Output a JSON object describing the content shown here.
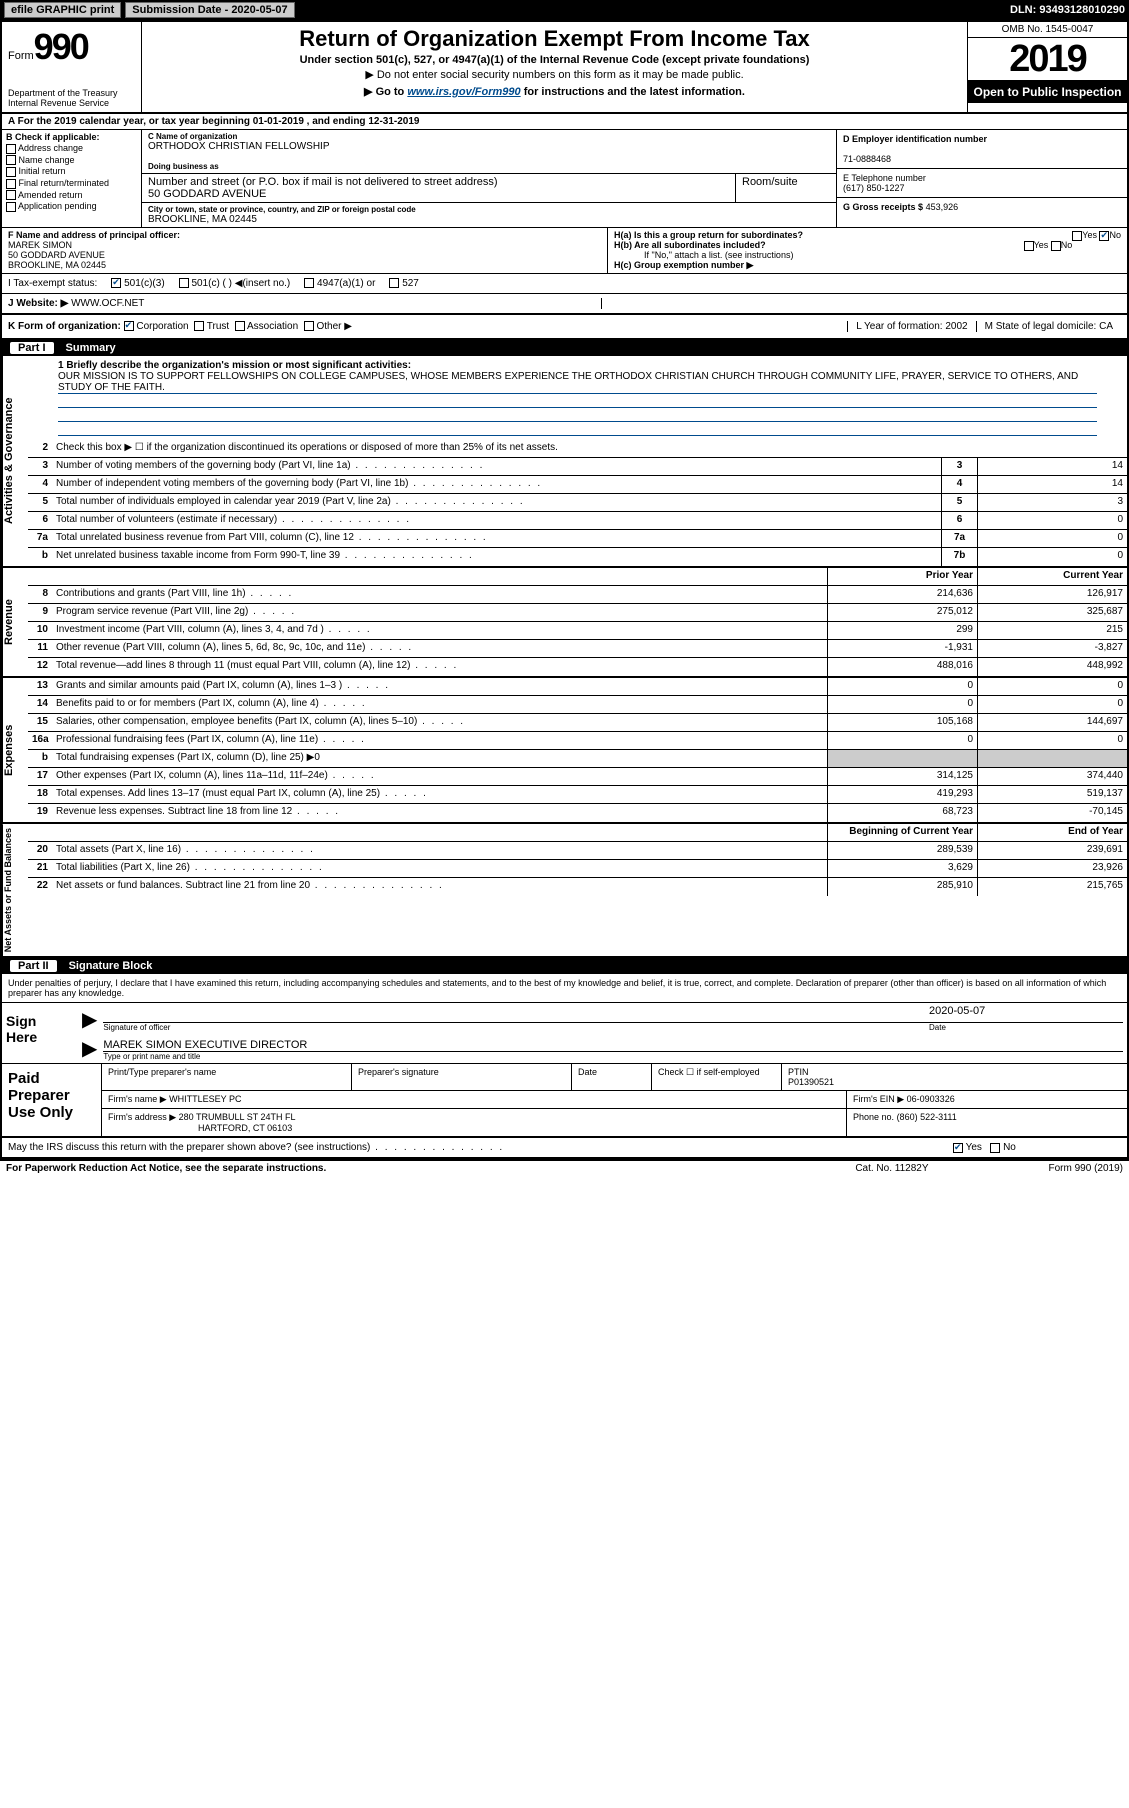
{
  "topbar": {
    "efile": "efile GRAPHIC print",
    "subdate_label": "Submission Date - 2020-05-07",
    "dln": "DLN: 93493128010290"
  },
  "header": {
    "form_prefix": "Form",
    "form_num": "990",
    "dept": "Department of the Treasury\nInternal Revenue Service",
    "title": "Return of Organization Exempt From Income Tax",
    "sub1": "Under section 501(c), 527, or 4947(a)(1) of the Internal Revenue Code (except private foundations)",
    "sub2": "▶ Do not enter social security numbers on this form as it may be made public.",
    "sub3_pre": "▶ Go to ",
    "sub3_link": "www.irs.gov/Form990",
    "sub3_post": " for instructions and the latest information.",
    "omb": "OMB No. 1545-0047",
    "year": "2019",
    "inspect": "Open to Public Inspection"
  },
  "period": "A For the 2019 calendar year, or tax year beginning 01-01-2019   , and ending 12-31-2019",
  "boxB": {
    "label": "B Check if applicable:",
    "opts": [
      "Address change",
      "Name change",
      "Initial return",
      "Final return/terminated",
      "Amended return",
      "Application pending"
    ]
  },
  "boxC": {
    "name_label": "C Name of organization",
    "name": "ORTHODOX CHRISTIAN FELLOWSHIP",
    "dba_label": "Doing business as",
    "addr_label": "Number and street (or P.O. box if mail is not delivered to street address)",
    "room_label": "Room/suite",
    "addr": "50 GODDARD AVENUE",
    "city_label": "City or town, state or province, country, and ZIP or foreign postal code",
    "city": "BROOKLINE, MA  02445"
  },
  "boxD": {
    "label": "D Employer identification number",
    "val": "71-0888468"
  },
  "boxE": {
    "label": "E Telephone number",
    "val": "(617) 850-1227"
  },
  "boxG": {
    "label": "G Gross receipts $",
    "val": "453,926"
  },
  "boxF": {
    "label": "F  Name and address of principal officer:",
    "name": "MAREK SIMON",
    "addr1": "50 GODDARD AVENUE",
    "addr2": "BROOKLINE, MA  02445"
  },
  "boxH": {
    "a": "H(a)  Is this a group return for subordinates?",
    "b": "H(b)  Are all subordinates included?",
    "b2": "If \"No,\" attach a list. (see instructions)",
    "c": "H(c)  Group exemption number ▶",
    "yes": "Yes",
    "no": "No"
  },
  "taxrow": {
    "label": "I   Tax-exempt status:",
    "o1": "501(c)(3)",
    "o2": "501(c) (  ) ◀(insert no.)",
    "o3": "4947(a)(1) or",
    "o4": "527"
  },
  "website": {
    "label": "J   Website: ▶",
    "val": "WWW.OCF.NET"
  },
  "rowK": {
    "label": "K Form of organization:",
    "opts": [
      "Corporation",
      "Trust",
      "Association",
      "Other ▶"
    ],
    "L": "L Year of formation: 2002",
    "M": "M State of legal domicile: CA"
  },
  "part1": {
    "num": "Part I",
    "title": "Summary"
  },
  "mission": {
    "label": "1  Briefly describe the organization's mission or most significant activities:",
    "text": "OUR MISSION IS TO SUPPORT FELLOWSHIPS ON COLLEGE CAMPUSES, WHOSE MEMBERS EXPERIENCE THE ORTHODOX CHRISTIAN CHURCH THROUGH COMMUNITY LIFE, PRAYER, SERVICE TO OTHERS, AND STUDY OF THE FAITH."
  },
  "gov_lines": [
    {
      "n": "2",
      "d": "Check this box ▶ ☐  if the organization discontinued its operations or disposed of more than 25% of its net assets.",
      "box": "",
      "v": ""
    },
    {
      "n": "3",
      "d": "Number of voting members of the governing body (Part VI, line 1a)",
      "box": "3",
      "v": "14"
    },
    {
      "n": "4",
      "d": "Number of independent voting members of the governing body (Part VI, line 1b)",
      "box": "4",
      "v": "14"
    },
    {
      "n": "5",
      "d": "Total number of individuals employed in calendar year 2019 (Part V, line 2a)",
      "box": "5",
      "v": "3"
    },
    {
      "n": "6",
      "d": "Total number of volunteers (estimate if necessary)",
      "box": "6",
      "v": "0"
    },
    {
      "n": "7a",
      "d": "Total unrelated business revenue from Part VIII, column (C), line 12",
      "box": "7a",
      "v": "0"
    },
    {
      "n": "b",
      "d": "Net unrelated business taxable income from Form 990-T, line 39",
      "box": "7b",
      "v": "0"
    }
  ],
  "rev_hdr": {
    "py": "Prior Year",
    "cy": "Current Year"
  },
  "rev_lines": [
    {
      "n": "8",
      "d": "Contributions and grants (Part VIII, line 1h)",
      "py": "214,636",
      "cy": "126,917"
    },
    {
      "n": "9",
      "d": "Program service revenue (Part VIII, line 2g)",
      "py": "275,012",
      "cy": "325,687"
    },
    {
      "n": "10",
      "d": "Investment income (Part VIII, column (A), lines 3, 4, and 7d )",
      "py": "299",
      "cy": "215"
    },
    {
      "n": "11",
      "d": "Other revenue (Part VIII, column (A), lines 5, 6d, 8c, 9c, 10c, and 11e)",
      "py": "-1,931",
      "cy": "-3,827"
    },
    {
      "n": "12",
      "d": "Total revenue—add lines 8 through 11 (must equal Part VIII, column (A), line 12)",
      "py": "488,016",
      "cy": "448,992"
    }
  ],
  "exp_lines": [
    {
      "n": "13",
      "d": "Grants and similar amounts paid (Part IX, column (A), lines 1–3 )",
      "py": "0",
      "cy": "0"
    },
    {
      "n": "14",
      "d": "Benefits paid to or for members (Part IX, column (A), line 4)",
      "py": "0",
      "cy": "0"
    },
    {
      "n": "15",
      "d": "Salaries, other compensation, employee benefits (Part IX, column (A), lines 5–10)",
      "py": "105,168",
      "cy": "144,697"
    },
    {
      "n": "16a",
      "d": "Professional fundraising fees (Part IX, column (A), line 11e)",
      "py": "0",
      "cy": "0"
    },
    {
      "n": "b",
      "d": "Total fundraising expenses (Part IX, column (D), line 25) ▶0",
      "py": "GRAY",
      "cy": "GRAY"
    },
    {
      "n": "17",
      "d": "Other expenses (Part IX, column (A), lines 11a–11d, 11f–24e)",
      "py": "314,125",
      "cy": "374,440"
    },
    {
      "n": "18",
      "d": "Total expenses. Add lines 13–17 (must equal Part IX, column (A), line 25)",
      "py": "419,293",
      "cy": "519,137"
    },
    {
      "n": "19",
      "d": "Revenue less expenses. Subtract line 18 from line 12",
      "py": "68,723",
      "cy": "-70,145"
    }
  ],
  "net_hdr": {
    "b": "Beginning of Current Year",
    "e": "End of Year"
  },
  "net_lines": [
    {
      "n": "20",
      "d": "Total assets (Part X, line 16)",
      "py": "289,539",
      "cy": "239,691"
    },
    {
      "n": "21",
      "d": "Total liabilities (Part X, line 26)",
      "py": "3,629",
      "cy": "23,926"
    },
    {
      "n": "22",
      "d": "Net assets or fund balances. Subtract line 21 from line 20",
      "py": "285,910",
      "cy": "215,765"
    }
  ],
  "part2": {
    "num": "Part II",
    "title": "Signature Block"
  },
  "sig": {
    "decl": "Under penalties of perjury, I declare that I have examined this return, including accompanying schedules and statements, and to the best of my knowledge and belief, it is true, correct, and complete. Declaration of preparer (other than officer) is based on all information of which preparer has any knowledge.",
    "here": "Sign Here",
    "officer_sig": "Signature of officer",
    "date": "2020-05-07",
    "date_lbl": "Date",
    "name": "MAREK SIMON EXECUTIVE DIRECTOR",
    "name_lbl": "Type or print name and title"
  },
  "paid": {
    "label": "Paid Preparer Use Only",
    "h1": "Print/Type preparer's name",
    "h2": "Preparer's signature",
    "h3": "Date",
    "h4a": "Check ☐ if self-employed",
    "h4b": "PTIN",
    "ptin": "P01390521",
    "firm_lbl": "Firm's name   ▶",
    "firm": "WHITTLESEY PC",
    "ein_lbl": "Firm's EIN ▶",
    "ein": "06-0903326",
    "addr_lbl": "Firm's address ▶",
    "addr1": "280 TRUMBULL ST 24TH FL",
    "addr2": "HARTFORD, CT  06103",
    "phone_lbl": "Phone no.",
    "phone": "(860) 522-3111"
  },
  "discuss": {
    "q": "May the IRS discuss this return with the preparer shown above? (see instructions)",
    "yes": "Yes",
    "no": "No"
  },
  "footer": {
    "left": "For Paperwork Reduction Act Notice, see the separate instructions.",
    "mid": "Cat. No. 11282Y",
    "right": "Form 990 (2019)"
  }
}
